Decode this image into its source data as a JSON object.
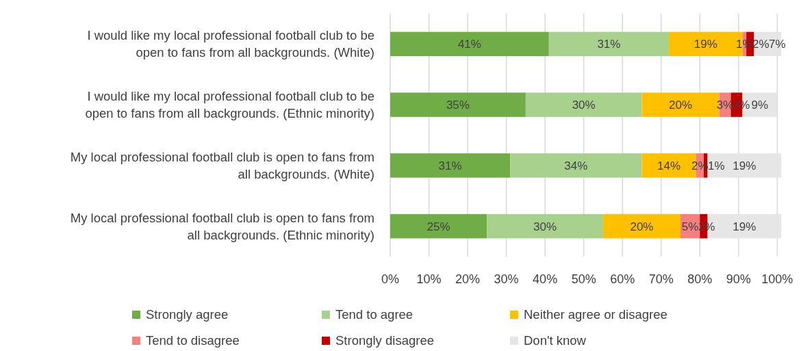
{
  "chart_data": {
    "type": "bar",
    "orientation": "horizontal",
    "stacked": true,
    "grid": "x",
    "legend": "bottom",
    "categories": [
      "I would like my local professional football club to be open to fans from all backgrounds. (White)",
      "I would like my local professional football club to be open to fans from all backgrounds. (Ethnic minority)",
      "My local professional football club is open to fans from all backgrounds. (White)",
      "My local professional football club is open to fans from all backgrounds. (Ethnic minority)"
    ],
    "series": [
      {
        "name": "Strongly agree",
        "color": "#70ad47",
        "values": [
          41,
          35,
          31,
          25
        ],
        "value_labels": [
          "41%",
          "35%",
          "31%",
          "25%"
        ]
      },
      {
        "name": "Tend to agree",
        "color": "#a9d18e",
        "values": [
          31,
          30,
          34,
          30
        ],
        "value_labels": [
          "31%",
          "30%",
          "34%",
          "30%"
        ]
      },
      {
        "name": "Neither agree or disagree",
        "color": "#ffc000",
        "values": [
          19,
          20,
          14,
          20
        ],
        "value_labels": [
          "19%",
          "20%",
          "14%",
          "20%"
        ]
      },
      {
        "name": "Tend to disagree",
        "color": "#f4817f",
        "values": [
          1,
          3,
          2,
          5
        ],
        "value_labels": [
          "1%",
          "3%",
          "2%",
          "5%"
        ]
      },
      {
        "name": "Strongly disagree",
        "color": "#c00000",
        "values": [
          2,
          3,
          1,
          2
        ],
        "value_labels": [
          "2%",
          "3%",
          "1%",
          "2%"
        ]
      },
      {
        "name": "Don't know",
        "color": "#e7e6e6",
        "values": [
          7,
          9,
          19,
          19
        ],
        "value_labels": [
          "7%",
          "9%",
          "19%",
          "19%"
        ]
      }
    ],
    "xlim": [
      0,
      101
    ],
    "xticks": [
      {
        "value": 0,
        "label": "0%"
      },
      {
        "value": 10,
        "label": "10%"
      },
      {
        "value": 20,
        "label": "20%"
      },
      {
        "value": 30,
        "label": "30%"
      },
      {
        "value": 40,
        "label": "40%"
      },
      {
        "value": 50,
        "label": "50%"
      },
      {
        "value": 60,
        "label": "60%"
      },
      {
        "value": 70,
        "label": "70%"
      },
      {
        "value": 80,
        "label": "80%"
      },
      {
        "value": 90,
        "label": "90%"
      },
      {
        "value": 100,
        "label": "100%"
      }
    ]
  }
}
